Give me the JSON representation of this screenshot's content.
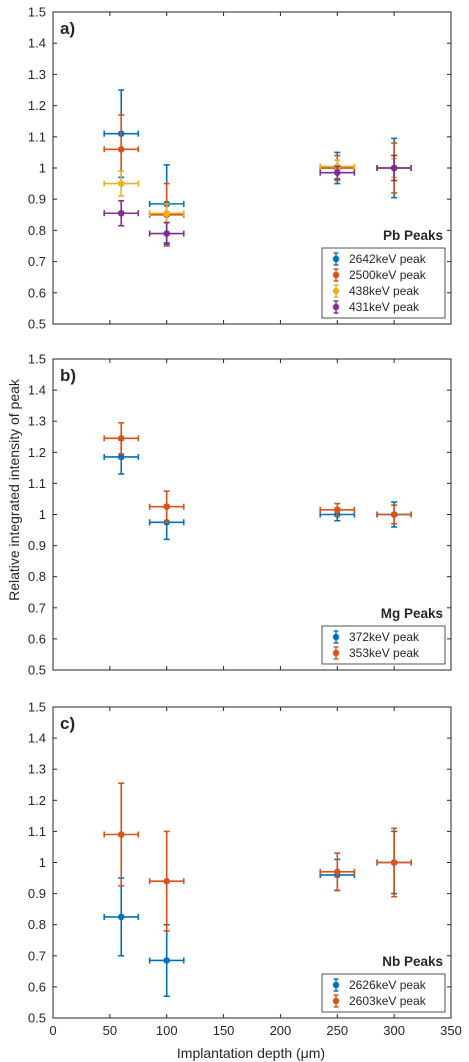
{
  "chart_data": [
    {
      "type": "scatter",
      "panel_label": "a)",
      "annotation": "Pb Peaks",
      "xlim": [
        0,
        350
      ],
      "ylim": [
        0.5,
        1.5
      ],
      "yticks": [
        0.5,
        0.6,
        0.7,
        0.8,
        0.9,
        1,
        1.1,
        1.2,
        1.3,
        1.4,
        1.5
      ],
      "legend_position": "bottom-right",
      "series": [
        {
          "name": "2642keV peak",
          "color": "#0072bd",
          "points": [
            {
              "x": 60,
              "y": 1.11,
              "xerr": 15,
              "yerr": 0.14
            },
            {
              "x": 100,
              "y": 0.885,
              "xerr": 15,
              "yerr": 0.125
            },
            {
              "x": 250,
              "y": 1.0,
              "xerr": 15,
              "yerr": 0.05
            },
            {
              "x": 300,
              "y": 1.0,
              "xerr": 15,
              "yerr": 0.095
            }
          ]
        },
        {
          "name": "2500keV peak",
          "color": "#d95319",
          "points": [
            {
              "x": 60,
              "y": 1.06,
              "xerr": 15,
              "yerr": 0.11
            },
            {
              "x": 100,
              "y": 0.85,
              "xerr": 15,
              "yerr": 0.1
            },
            {
              "x": 250,
              "y": 1.0,
              "xerr": 15,
              "yerr": 0.04
            },
            {
              "x": 300,
              "y": 1.0,
              "xerr": 15,
              "yerr": 0.08
            }
          ]
        },
        {
          "name": "438keV peak",
          "color": "#edb120",
          "points": [
            {
              "x": 60,
              "y": 0.95,
              "xerr": 15,
              "yerr": 0.04
            },
            {
              "x": 100,
              "y": 0.855,
              "xerr": 15,
              "yerr": 0.03
            },
            {
              "x": 250,
              "y": 1.005,
              "xerr": 15,
              "yerr": 0.02
            },
            {
              "x": 300,
              "y": 1.0,
              "xerr": 15,
              "yerr": 0.03
            }
          ]
        },
        {
          "name": "431keV peak",
          "color": "#7e2f8e",
          "points": [
            {
              "x": 60,
              "y": 0.855,
              "xerr": 15,
              "yerr": 0.04
            },
            {
              "x": 100,
              "y": 0.79,
              "xerr": 15,
              "yerr": 0.035
            },
            {
              "x": 250,
              "y": 0.985,
              "xerr": 15,
              "yerr": 0.02
            },
            {
              "x": 300,
              "y": 1.0,
              "xerr": 15,
              "yerr": 0.04
            }
          ]
        }
      ]
    },
    {
      "type": "scatter",
      "panel_label": "b)",
      "annotation": "Mg Peaks",
      "xlim": [
        0,
        350
      ],
      "ylim": [
        0.5,
        1.5
      ],
      "yticks": [
        0.5,
        0.6,
        0.7,
        0.8,
        0.9,
        1,
        1.1,
        1.2,
        1.3,
        1.4,
        1.5
      ],
      "legend_position": "bottom-right",
      "series": [
        {
          "name": "372keV peak",
          "color": "#0072bd",
          "points": [
            {
              "x": 60,
              "y": 1.185,
              "xerr": 15,
              "yerr": 0.055
            },
            {
              "x": 100,
              "y": 0.975,
              "xerr": 15,
              "yerr": 0.055
            },
            {
              "x": 250,
              "y": 1.0,
              "xerr": 15,
              "yerr": 0.02
            },
            {
              "x": 300,
              "y": 1.0,
              "xerr": 15,
              "yerr": 0.04
            }
          ]
        },
        {
          "name": "353keV peak",
          "color": "#d95319",
          "points": [
            {
              "x": 60,
              "y": 1.245,
              "xerr": 15,
              "yerr": 0.05
            },
            {
              "x": 100,
              "y": 1.025,
              "xerr": 15,
              "yerr": 0.05
            },
            {
              "x": 250,
              "y": 1.015,
              "xerr": 15,
              "yerr": 0.02
            },
            {
              "x": 300,
              "y": 1.0,
              "xerr": 15,
              "yerr": 0.03
            }
          ]
        }
      ]
    },
    {
      "type": "scatter",
      "panel_label": "c)",
      "annotation": "Nb Peaks",
      "xlim": [
        0,
        350
      ],
      "ylim": [
        0.5,
        1.5
      ],
      "xticks": [
        0,
        50,
        100,
        150,
        200,
        250,
        300,
        350
      ],
      "yticks": [
        0.5,
        0.6,
        0.7,
        0.8,
        0.9,
        1,
        1.1,
        1.2,
        1.3,
        1.4,
        1.5
      ],
      "xlabel": "Implantation depth (μm)",
      "legend_position": "bottom-right",
      "series": [
        {
          "name": "2626keV peak",
          "color": "#0072bd",
          "points": [
            {
              "x": 60,
              "y": 0.825,
              "xerr": 15,
              "yerr": 0.125
            },
            {
              "x": 100,
              "y": 0.685,
              "xerr": 15,
              "yerr": 0.115
            },
            {
              "x": 250,
              "y": 0.96,
              "xerr": 15,
              "yerr": 0.05
            },
            {
              "x": 300,
              "y": 1.0,
              "xerr": 15,
              "yerr": 0.1
            }
          ]
        },
        {
          "name": "2603keV peak",
          "color": "#d95319",
          "points": [
            {
              "x": 60,
              "y": 1.09,
              "xerr": 15,
              "yerr": 0.165
            },
            {
              "x": 100,
              "y": 0.94,
              "xerr": 15,
              "yerr": 0.16
            },
            {
              "x": 250,
              "y": 0.97,
              "xerr": 15,
              "yerr": 0.06
            },
            {
              "x": 300,
              "y": 1.0,
              "xerr": 15,
              "yerr": 0.11
            }
          ]
        }
      ]
    }
  ],
  "shared_ylabel": "Relative integrated intensity of peak"
}
